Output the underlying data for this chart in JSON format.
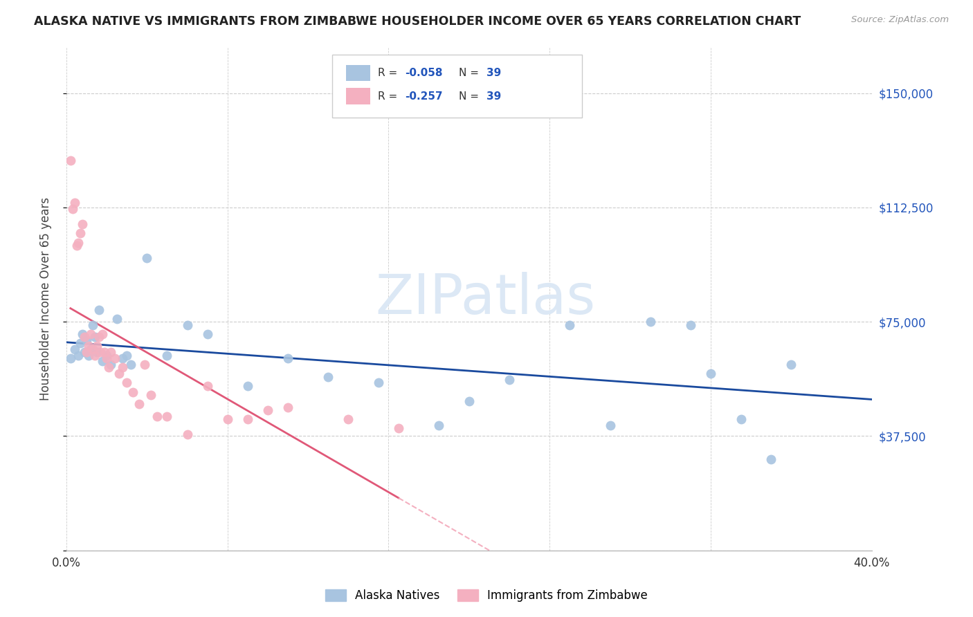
{
  "title": "ALASKA NATIVE VS IMMIGRANTS FROM ZIMBABWE HOUSEHOLDER INCOME OVER 65 YEARS CORRELATION CHART",
  "source": "Source: ZipAtlas.com",
  "ylabel": "Householder Income Over 65 years",
  "xlim": [
    0.0,
    0.4
  ],
  "ylim": [
    0,
    165000
  ],
  "yticks": [
    0,
    37500,
    75000,
    112500,
    150000
  ],
  "ytick_labels": [
    "",
    "$37,500",
    "$75,000",
    "$112,500",
    "$150,000"
  ],
  "xtick_positions": [
    0.0,
    0.08,
    0.16,
    0.24,
    0.32,
    0.4
  ],
  "xtick_labels": [
    "0.0%",
    "",
    "",
    "",
    "",
    "40.0%"
  ],
  "alaska_R": -0.058,
  "alaska_N": 39,
  "zimbabwe_R": -0.257,
  "zimbabwe_N": 39,
  "alaska_color": "#a8c4e0",
  "zimbabwe_color": "#f4b0c0",
  "alaska_line_color": "#1a4a9e",
  "zimbabwe_line_color": "#e05878",
  "zimbabwe_dashed_color": "#f4b0c0",
  "watermark_color": "#dce8f5",
  "background_color": "#ffffff",
  "alaska_x": [
    0.002,
    0.004,
    0.006,
    0.007,
    0.008,
    0.009,
    0.01,
    0.011,
    0.012,
    0.013,
    0.014,
    0.015,
    0.016,
    0.018,
    0.02,
    0.022,
    0.025,
    0.028,
    0.03,
    0.032,
    0.04,
    0.05,
    0.06,
    0.07,
    0.09,
    0.11,
    0.13,
    0.155,
    0.185,
    0.2,
    0.22,
    0.25,
    0.27,
    0.29,
    0.31,
    0.32,
    0.335,
    0.35,
    0.36
  ],
  "alaska_y": [
    63000,
    66000,
    64000,
    68000,
    71000,
    65000,
    69000,
    64000,
    66000,
    74000,
    70000,
    65000,
    79000,
    62000,
    64000,
    61000,
    76000,
    63000,
    64000,
    61000,
    96000,
    64000,
    74000,
    71000,
    54000,
    63000,
    57000,
    55000,
    41000,
    49000,
    56000,
    74000,
    41000,
    75000,
    74000,
    58000,
    43000,
    30000,
    61000
  ],
  "zimbabwe_x": [
    0.002,
    0.003,
    0.004,
    0.005,
    0.006,
    0.007,
    0.008,
    0.009,
    0.01,
    0.011,
    0.012,
    0.013,
    0.014,
    0.015,
    0.016,
    0.017,
    0.018,
    0.019,
    0.02,
    0.021,
    0.022,
    0.024,
    0.026,
    0.028,
    0.03,
    0.033,
    0.036,
    0.039,
    0.042,
    0.045,
    0.05,
    0.06,
    0.07,
    0.08,
    0.09,
    0.1,
    0.11,
    0.14,
    0.165
  ],
  "zimbabwe_y": [
    128000,
    112000,
    114000,
    100000,
    101000,
    104000,
    107000,
    70000,
    65000,
    67000,
    71000,
    66000,
    64000,
    67000,
    70000,
    65000,
    71000,
    65000,
    63000,
    60000,
    65000,
    63000,
    58000,
    60000,
    55000,
    52000,
    48000,
    61000,
    51000,
    44000,
    44000,
    38000,
    54000,
    43000,
    43000,
    46000,
    47000,
    43000,
    40000
  ]
}
